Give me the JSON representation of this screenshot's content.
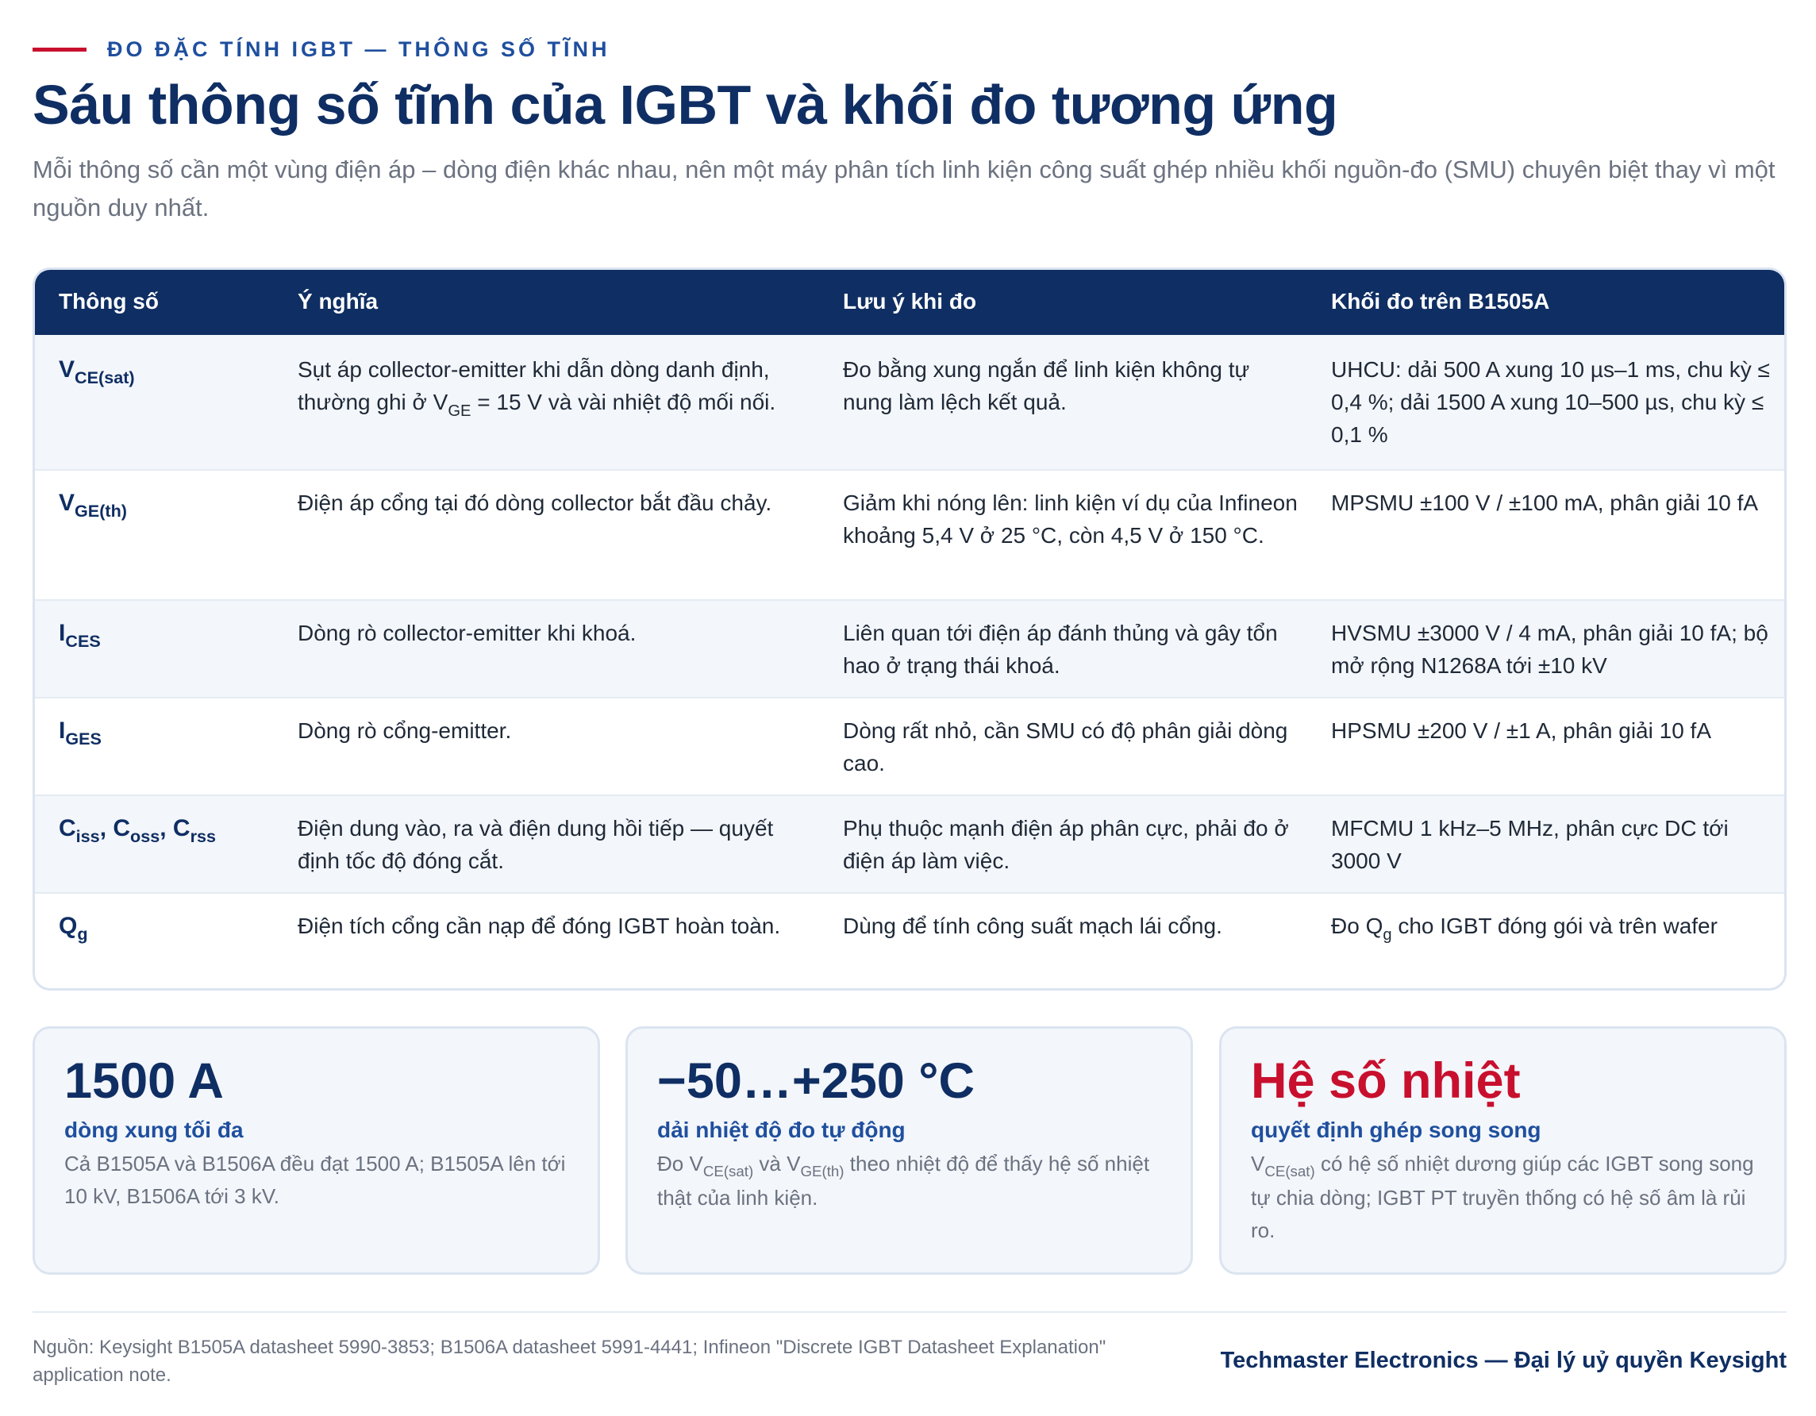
{
  "kicker": "ĐO ĐẶC TÍNH IGBT — THÔNG SỐ TĨNH",
  "title": "Sáu thông số tĩnh của IGBT và khối đo tương ứng",
  "subtitle": "Mỗi thông số cần một vùng điện áp – dòng điện khác nhau, nên một máy phân tích linh kiện công suất ghép nhiều khối nguồn-đo (SMU) chuyên biệt thay vì một nguồn duy nhất.",
  "table": {
    "headers": [
      "Thông số",
      "Ý nghĩa",
      "Lưu ý khi đo",
      "Khối đo trên B1505A"
    ],
    "rows": [
      {
        "param_base": "V",
        "param_sub": "CE(sat)",
        "meaning_a": "Sụt áp collector-emitter khi dẫn dòng danh định, thường ghi ở V",
        "meaning_sub": "GE",
        "meaning_b": " = 15 V và vài nhiệt độ mối nối.",
        "note": "Đo bằng xung ngắn để linh kiện không tự nung làm lệch kết quả.",
        "unit": "UHCU: dải 500 A xung 10 µs–1 ms, chu kỳ ≤ 0,4 %; dải 1500 A xung 10–500 µs, chu kỳ ≤ 0,1 %"
      },
      {
        "param_base": "V",
        "param_sub": "GE(th)",
        "meaning": "Điện áp cổng tại đó dòng collector bắt đầu chảy.",
        "note": "Giảm khi nóng lên: linh kiện ví dụ của Infineon khoảng 5,4 V ở 25 °C, còn 4,5 V ở 150 °C.",
        "unit": "MPSMU ±100 V / ±100 mA, phân giải 10 fA"
      },
      {
        "param_base": "I",
        "param_sub": "CES",
        "meaning": "Dòng rò collector-emitter khi khoá.",
        "note": "Liên quan tới điện áp đánh thủng và gây tổn hao ở trạng thái khoá.",
        "unit": "HVSMU ±3000 V / 4 mA, phân giải 10 fA; bộ mở rộng N1268A tới ±10 kV"
      },
      {
        "param_base": "I",
        "param_sub": "GES",
        "meaning": "Dòng rò cổng-emitter.",
        "note": "Dòng rất nhỏ, cần SMU có độ phân giải dòng cao.",
        "unit": "HPSMU ±200 V / ±1 A, phân giải 10 fA"
      },
      {
        "p1": "C",
        "s1": "iss",
        "p2": ", C",
        "s2": "oss",
        "p3": ", C",
        "s3": "rss",
        "meaning": "Điện dung vào, ra và điện dung hồi tiếp — quyết định tốc độ đóng cắt.",
        "note": "Phụ thuộc mạnh điện áp phân cực, phải đo ở điện áp làm việc.",
        "unit": "MFCMU 1 kHz–5 MHz, phân cực DC tới 3000 V"
      },
      {
        "param_base": "Q",
        "param_sub": "g",
        "meaning": "Điện tích cổng cần nạp để đóng IGBT hoàn toàn.",
        "note": "Dùng để tính công suất mạch lái cổng.",
        "unit_a": "Đo Q",
        "unit_sub": "g",
        "unit_b": " cho IGBT đóng gói và trên wafer"
      }
    ]
  },
  "cards": [
    {
      "big": "1500 A",
      "label": "dòng xung tối đa",
      "desc": "Cả B1505A và B1506A đều đạt 1500 A; B1505A lên tới 10 kV, B1506A tới 3 kV."
    },
    {
      "big": "−50…+250 °C",
      "label": "dải nhiệt độ đo tự động",
      "desc_a": "Đo V",
      "desc_s1": "CE(sat)",
      "desc_b": " và V",
      "desc_s2": "GE(th)",
      "desc_c": " theo nhiệt độ để thấy hệ số nhiệt thật của linh kiện."
    },
    {
      "big": "Hệ số nhiệt",
      "label": "quyết định ghép song song",
      "desc_a": "V",
      "desc_s1": "CE(sat)",
      "desc_b": " có hệ số nhiệt dương giúp các IGBT song song tự chia dòng; IGBT PT truyền thống có hệ số âm là rủi ro."
    }
  ],
  "footer": {
    "source": "Nguồn: Keysight B1505A datasheet 5990-3853; B1506A datasheet 5991-4441; Infineon \"Discrete IGBT Datasheet Explanation\" application note.",
    "brand": "Techmaster Electronics — Đại lý uỷ quyền Keysight"
  },
  "colors": {
    "navy": "#0f2e63",
    "blue": "#1f4f9e",
    "red": "#c8102e",
    "muted": "#6b7280",
    "row_alt": "#f3f6fa"
  }
}
